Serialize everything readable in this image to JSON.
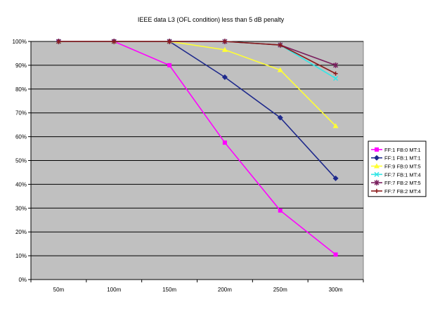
{
  "chart_data": {
    "type": "line",
    "title": "IEEE data L3 (OFL condition) less than  5 dB penalty",
    "xlabel": "",
    "ylabel": "",
    "categories": [
      "50m",
      "100m",
      "150m",
      "200m",
      "250m",
      "300m"
    ],
    "yticks": [
      "0%",
      "10%",
      "20%",
      "30%",
      "40%",
      "50%",
      "60%",
      "70%",
      "80%",
      "90%",
      "100%"
    ],
    "ylim": [
      0,
      100
    ],
    "grid": true,
    "legend_position": "right",
    "plot_background": "#c0c0c0",
    "series": [
      {
        "name": "FF:1 FB:0 MT:1",
        "color": "#ff00ff",
        "marker": "square",
        "values": [
          100,
          100,
          90,
          57.5,
          29,
          10.5
        ]
      },
      {
        "name": "FF:1 FB:1 MT:1",
        "color": "#1f2a8c",
        "marker": "diamond",
        "values": [
          100,
          100,
          100,
          85,
          68,
          42.5
        ]
      },
      {
        "name": "FF:9 FB:0 MT:5",
        "color": "#ffff33",
        "marker": "triangle",
        "values": [
          100,
          100,
          100,
          96.5,
          88,
          64.5
        ]
      },
      {
        "name": "FF:7 FB:1 MT:4",
        "color": "#33e6e6",
        "marker": "x",
        "values": [
          100,
          100,
          100,
          100,
          98.5,
          84.5
        ]
      },
      {
        "name": "FF:7 FB:2 MT:5",
        "color": "#7a1f5e",
        "marker": "star",
        "values": [
          100,
          100,
          100,
          100,
          98.5,
          90
        ]
      },
      {
        "name": "FF:7 FB:2 MT:4",
        "color": "#8b1a1a",
        "marker": "plus",
        "values": [
          100,
          100,
          100,
          100,
          98.5,
          86.5
        ]
      }
    ]
  }
}
